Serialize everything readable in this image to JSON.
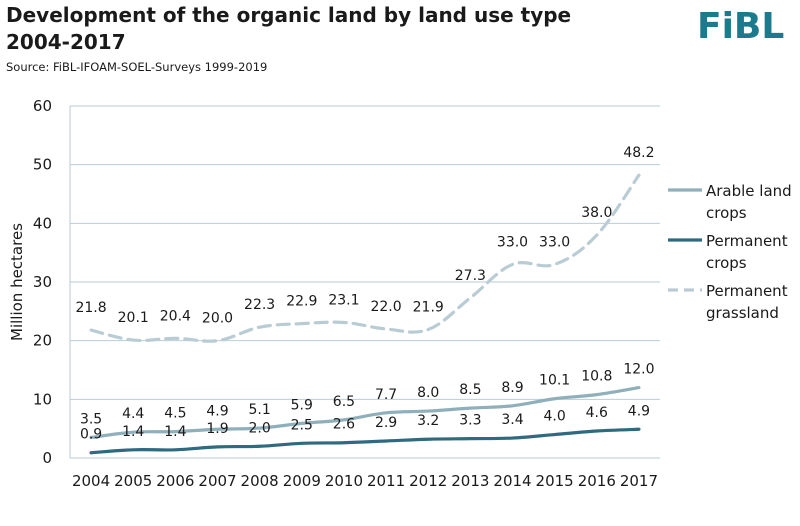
{
  "header": {
    "title": "Development of the organic land by land use type 2004-2017",
    "source": "Source: FiBL-IFOAM-SOEL-Surveys 1999-2019",
    "logo_text": "FiBL"
  },
  "colors": {
    "arable": "#8fb0bb",
    "permanent_crops": "#2e6a80",
    "grassland": "#b9ccd4",
    "grid": "#b8ced6",
    "logo": "#1b7a8c"
  },
  "chart_data": {
    "type": "line",
    "title": "Development of the organic land by land use type 2004-2017",
    "ylabel": "Million hectares",
    "xlabel": "",
    "ylim": [
      0,
      60
    ],
    "yticks": [
      0,
      10,
      20,
      30,
      40,
      50,
      60
    ],
    "grid": true,
    "legend_position": "right",
    "categories": [
      "2004",
      "2005",
      "2006",
      "2007",
      "2008",
      "2009",
      "2010",
      "2011",
      "2012",
      "2013",
      "2014",
      "2015",
      "2016",
      "2017"
    ],
    "series": [
      {
        "name": "Arable land crops",
        "style": "solid",
        "color": "#8fb0bb",
        "values": [
          3.5,
          4.4,
          4.5,
          4.9,
          5.1,
          5.9,
          6.5,
          7.7,
          8.0,
          8.5,
          8.9,
          10.1,
          10.8,
          12.0
        ],
        "labels": [
          "3.5",
          "4.4",
          "4.5",
          "4.9",
          "5.1",
          "5.9",
          "6.5",
          "7.7",
          "8.0",
          "8.5",
          "8.9",
          "10.1",
          "10.8",
          "12.0"
        ]
      },
      {
        "name": "Permanent crops",
        "style": "solid",
        "color": "#2e6a80",
        "values": [
          0.9,
          1.4,
          1.4,
          1.9,
          2.0,
          2.5,
          2.6,
          2.9,
          3.2,
          3.3,
          3.4,
          4.0,
          4.6,
          4.9
        ],
        "labels": [
          "0.9",
          "1.4",
          "1.4",
          "1.9",
          "2.0",
          "2.5",
          "2.6",
          "2.9",
          "3.2",
          "3.3",
          "3.4",
          "4.0",
          "4.6",
          "4.9"
        ]
      },
      {
        "name": "Permanent grassland",
        "style": "dashed",
        "color": "#b9ccd4",
        "values": [
          21.8,
          20.1,
          20.4,
          20.0,
          22.3,
          22.9,
          23.1,
          22.0,
          21.9,
          27.3,
          33.0,
          33.0,
          38.0,
          48.2
        ],
        "labels": [
          "21.8",
          "20.1",
          "20.4",
          "20.0",
          "22.3",
          "22.9",
          "23.1",
          "22.0",
          "21.9",
          "27.3",
          "33.0",
          "33.0",
          "38.0",
          "48.2"
        ]
      }
    ],
    "legend": [
      {
        "lines": [
          "Arable land",
          "crops"
        ]
      },
      {
        "lines": [
          "Permanent",
          "crops"
        ]
      },
      {
        "lines": [
          "Permanent",
          "grassland"
        ]
      }
    ]
  }
}
